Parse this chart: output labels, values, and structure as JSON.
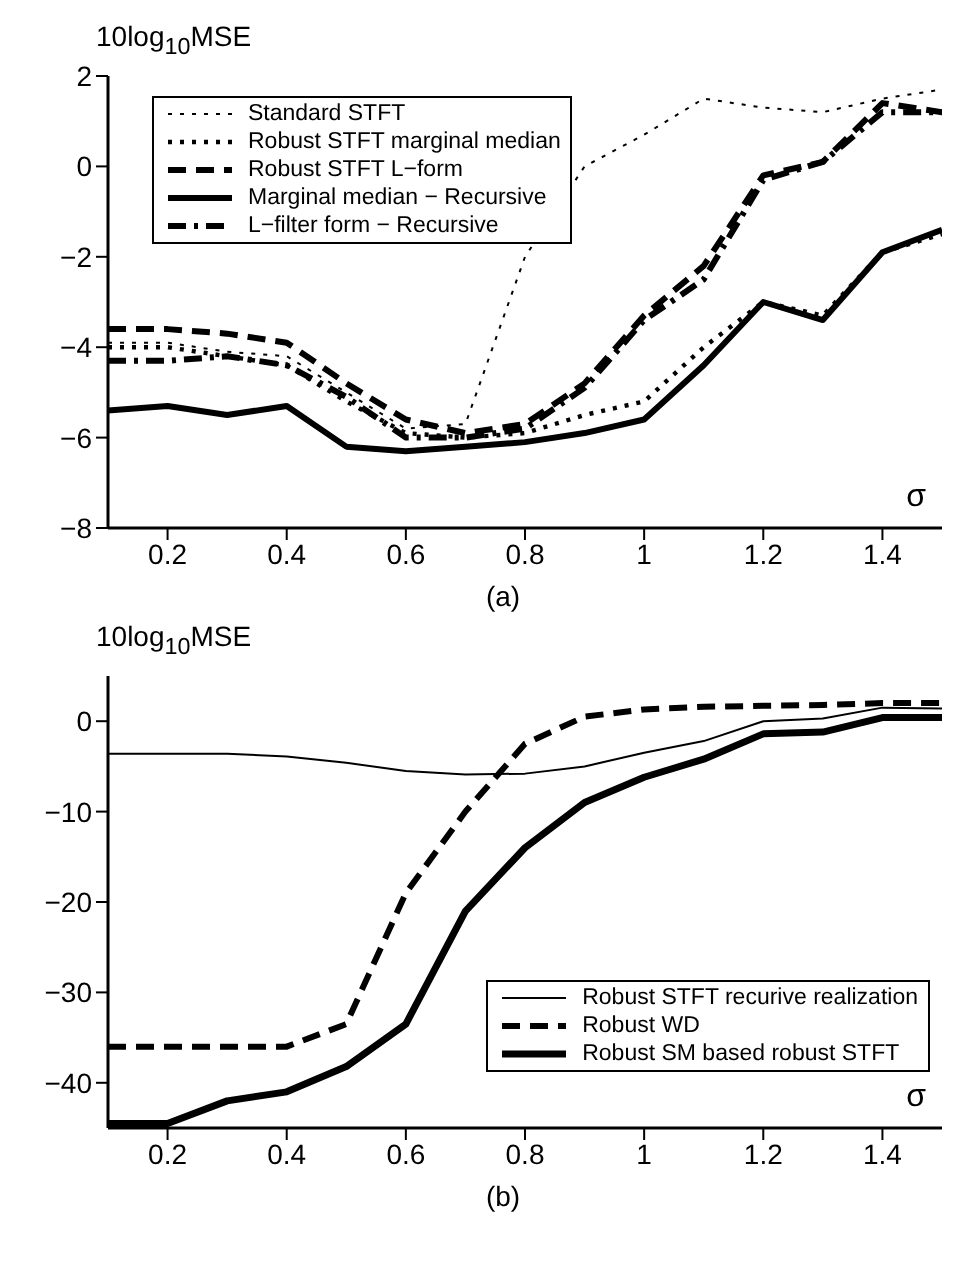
{
  "chart_data": [
    {
      "type": "line",
      "ylabel": "10log$_{10}$MSE",
      "xlabel": "σ",
      "annotations": [
        "(a)"
      ],
      "x": [
        0.1,
        0.2,
        0.3,
        0.4,
        0.5,
        0.6,
        0.7,
        0.8,
        0.9,
        1.0,
        1.1,
        1.2,
        1.3,
        1.4,
        1.5
      ],
      "xlim": [
        0.1,
        1.5
      ],
      "xticks": [
        0.2,
        0.4,
        0.6,
        0.8,
        1,
        1.2,
        1.4
      ],
      "ylim": [
        -8,
        2
      ],
      "yticks": [
        -8,
        -6,
        -4,
        -2,
        0,
        2
      ],
      "grid": false,
      "legend": "top left",
      "marker": "none",
      "series": [
        {
          "name": "Standard STFT",
          "color": "#000000",
          "line_style": "dotted",
          "values": [
            -3.9,
            -3.9,
            -4.1,
            -4.2,
            -5.0,
            -5.8,
            -5.7,
            -2.0,
            0.0,
            0.7,
            1.5,
            1.3,
            1.2,
            1.5,
            1.7
          ]
        },
        {
          "name": "Robust STFT marginal median",
          "color": "#000000",
          "line_style": "dotted",
          "values": [
            -4.0,
            -4.0,
            -4.2,
            -4.4,
            -5.2,
            -5.9,
            -6.0,
            -5.9,
            -5.5,
            -5.2,
            -4.0,
            -3.0,
            -3.3,
            -1.9,
            -1.5
          ]
        },
        {
          "name": "Robust STFT L−form",
          "color": "#000000",
          "line_style": "dashed",
          "values": [
            -3.6,
            -3.6,
            -3.7,
            -3.9,
            -4.8,
            -5.6,
            -5.9,
            -5.7,
            -4.8,
            -3.3,
            -2.2,
            -0.2,
            0.1,
            1.4,
            1.2
          ]
        },
        {
          "name": "Marginal median − Recursive",
          "color": "#000000",
          "line_style": "solid",
          "values": [
            -5.4,
            -5.3,
            -5.5,
            -5.3,
            -6.2,
            -6.3,
            -6.2,
            -6.1,
            -5.9,
            -5.6,
            -4.4,
            -3.0,
            -3.4,
            -1.9,
            -1.4
          ]
        },
        {
          "name": "L−filter form − Recursive",
          "color": "#000000",
          "line_style": "dashdot",
          "values": [
            -4.3,
            -4.3,
            -4.2,
            -4.4,
            -5.1,
            -6.0,
            -6.0,
            -5.8,
            -4.9,
            -3.4,
            -2.5,
            -0.3,
            0.1,
            1.2,
            1.2
          ]
        }
      ]
    },
    {
      "type": "line",
      "ylabel": "10log$_{10}$MSE",
      "xlabel": "σ",
      "annotations": [
        "(b)"
      ],
      "x": [
        0.1,
        0.2,
        0.3,
        0.4,
        0.5,
        0.6,
        0.7,
        0.8,
        0.9,
        1.0,
        1.1,
        1.2,
        1.3,
        1.4,
        1.5
      ],
      "xlim": [
        0.1,
        1.5
      ],
      "xticks": [
        0.2,
        0.4,
        0.6,
        0.8,
        1,
        1.2,
        1.4
      ],
      "ylim": [
        -45,
        5
      ],
      "yticks": [
        -40,
        -30,
        -20,
        -10,
        0
      ],
      "grid": false,
      "legend": "bottom right",
      "marker": "none",
      "series": [
        {
          "name": "Robust STFT recurive realization",
          "color": "#000000",
          "line_style": "solid",
          "values": [
            -3.6,
            -3.6,
            -3.6,
            -3.9,
            -4.6,
            -5.5,
            -5.9,
            -5.8,
            -5.0,
            -3.5,
            -2.2,
            0.0,
            0.3,
            1.5,
            1.4
          ]
        },
        {
          "name": "Robust WD",
          "color": "#000000",
          "line_style": "dashed",
          "values": [
            -36,
            -36,
            -36,
            -36,
            -33.5,
            -19,
            -10,
            -2.5,
            0.5,
            1.3,
            1.6,
            1.7,
            1.8,
            2.0,
            2.0
          ]
        },
        {
          "name": "Robust SM based robust STFT",
          "color": "#000000",
          "line_style": "solid",
          "values": [
            -44.5,
            -44.5,
            -42,
            -41,
            -38.2,
            -33.5,
            -21,
            -14,
            -9,
            -6.2,
            -4.2,
            -1.4,
            -1.2,
            0.4,
            0.4
          ]
        }
      ]
    }
  ]
}
